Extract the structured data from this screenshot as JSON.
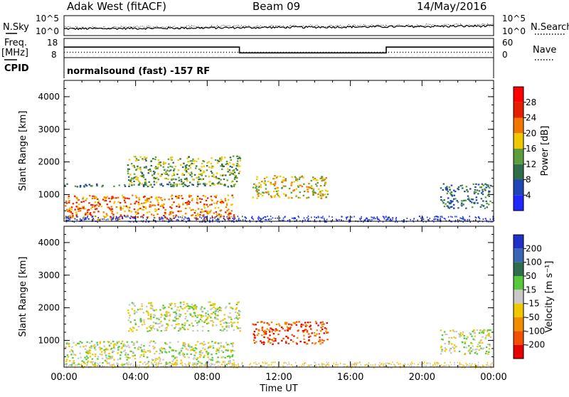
{
  "header": {
    "station": "Adak West (fitACF)",
    "beam": "Beam 09",
    "date": "14/May/2016"
  },
  "chart_data": [
    {
      "type": "line",
      "panel": "noise",
      "left_label": "N.Sky",
      "right_label": "N.Search",
      "left_ticks": [
        "10^5",
        "10^0"
      ],
      "right_ticks": [
        "10^5",
        "10^0"
      ]
    },
    {
      "type": "line",
      "panel": "frequency",
      "left_label": "Freq.",
      "left_unit": "[MHz]",
      "right_label": "Nave",
      "left_ticks": [
        "18",
        "8"
      ],
      "right_ticks": [
        "60",
        "0"
      ],
      "freq_segments": [
        {
          "start_h": 0,
          "end_h": 9.8,
          "mhz": 13.5
        },
        {
          "start_h": 9.8,
          "end_h": 18.0,
          "mhz": 10.5
        },
        {
          "start_h": 18.0,
          "end_h": 24,
          "mhz": 13.5
        }
      ]
    },
    {
      "type": "table",
      "panel": "cpid",
      "label": "CPID",
      "text": "normalsound (fast) -157 RF"
    },
    {
      "type": "heatmap",
      "panel": "power",
      "ylabel": "Slant Range [km]",
      "yticks": [
        "1000",
        "2000",
        "3000",
        "4000"
      ],
      "ylim": [
        180,
        4500
      ],
      "colorbar_label": "Power [dB]",
      "colorbar_ticks": [
        "4",
        "8",
        "12",
        "16",
        "20",
        "24",
        "28"
      ],
      "colors": [
        "#1e28ff",
        "#1e46b4",
        "#2f6e4c",
        "#5c9e3c",
        "#f0c800",
        "#f07800",
        "#e61e00",
        "#ff0000"
      ],
      "echo_regions": [
        {
          "t0": 0.0,
          "t1": 9.5,
          "r0": 250,
          "r1": 1000,
          "level": 5
        },
        {
          "t0": 0.0,
          "t1": 9.5,
          "r0": 1250,
          "r1": 1350,
          "level": 2
        },
        {
          "t0": 3.5,
          "t1": 9.8,
          "r0": 1300,
          "r1": 2200,
          "level": 3
        },
        {
          "t0": 10.5,
          "t1": 14.7,
          "r0": 900,
          "r1": 1600,
          "level": 4
        },
        {
          "t0": 21.0,
          "t1": 23.8,
          "r0": 600,
          "r1": 1350,
          "level": 2
        }
      ]
    },
    {
      "type": "heatmap",
      "panel": "velocity",
      "ylabel": "Slant Range [km]",
      "yticks": [
        "1000",
        "2000",
        "3000",
        "4000"
      ],
      "ylim": [
        180,
        4500
      ],
      "colorbar_label": "Velocity [m s⁻¹]",
      "colorbar_ticks": [
        "200",
        "100",
        "50",
        "15",
        "-15",
        "-50",
        "-100",
        "-200"
      ],
      "colors": [
        "#1e32c8",
        "#3c64b4",
        "#2f6e4c",
        "#5ac83c",
        "#c8c8c8",
        "#f0c800",
        "#f08c00",
        "#f05000",
        "#e60000"
      ],
      "echo_regions": [
        {
          "t0": 0.0,
          "t1": 9.5,
          "r0": 250,
          "r1": 1000,
          "level": 4
        },
        {
          "t0": 3.5,
          "t1": 9.8,
          "r0": 1300,
          "r1": 2200,
          "level": 4
        },
        {
          "t0": 10.5,
          "t1": 14.7,
          "r0": 900,
          "r1": 1600,
          "level": 7
        },
        {
          "t0": 21.0,
          "t1": 23.8,
          "r0": 600,
          "r1": 1350,
          "level": 4
        }
      ]
    }
  ],
  "xaxis": {
    "label": "Time UT",
    "ticks": [
      "00:00",
      "04:00",
      "08:00",
      "12:00",
      "16:00",
      "20:00",
      "00:00"
    ]
  }
}
